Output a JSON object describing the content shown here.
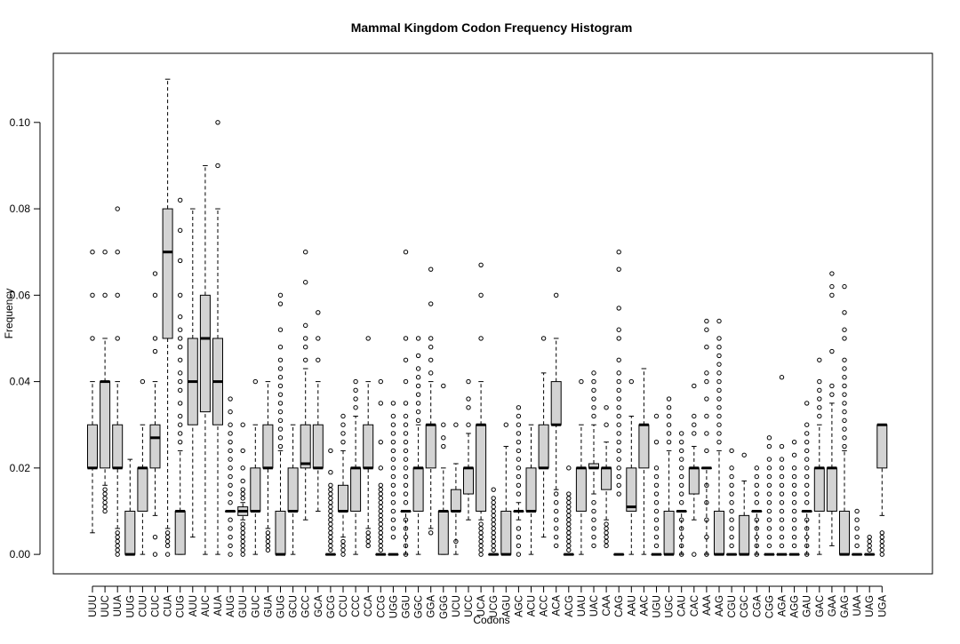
{
  "chart_data": {
    "type": "box",
    "title": "Mammal  Kingdom Codon Frequency Histogram",
    "xlabel": "Codons",
    "ylabel": "Frequency",
    "ylim": [
      -0.0045,
      0.116
    ],
    "yticks": [
      0.0,
      0.02,
      0.04,
      0.06,
      0.08,
      0.1
    ],
    "ytick_labels": [
      "0.00",
      "0.02",
      "0.04",
      "0.06",
      "0.08",
      "0.10"
    ],
    "categories": [
      "UUU",
      "UUC",
      "UUA",
      "UUG",
      "CUU",
      "CUC",
      "CUA",
      "CUG",
      "AUU",
      "AUC",
      "AUA",
      "AUG",
      "GUU",
      "GUC",
      "GUA",
      "GUG",
      "GCU",
      "GCC",
      "GCA",
      "GCG",
      "CCU",
      "CCC",
      "CCA",
      "CCG",
      "UGG",
      "GGU",
      "GGC",
      "GGA",
      "GGG",
      "UCU",
      "UCC",
      "UCA",
      "UCG",
      "AGU",
      "AGC",
      "ACU",
      "ACC",
      "ACA",
      "ACG",
      "UAU",
      "UAC",
      "CAA",
      "CAG",
      "AAU",
      "AAC",
      "UGU",
      "UGC",
      "CAU",
      "CAC",
      "AAA",
      "AAG",
      "CGU",
      "CGC",
      "CGA",
      "CGG",
      "AGA",
      "AGG",
      "GAU",
      "GAC",
      "GAA",
      "GAG",
      "UAA",
      "UAG",
      "UGA"
    ],
    "boxes": [
      {
        "min": 0.005,
        "q1": 0.02,
        "median": 0.02,
        "q3": 0.03,
        "max": 0.04,
        "outliers": [
          0.05,
          0.06,
          0.07
        ]
      },
      {
        "min": 0.016,
        "q1": 0.02,
        "median": 0.04,
        "q3": 0.04,
        "max": 0.05,
        "outliers": [
          0.015,
          0.014,
          0.013,
          0.012,
          0.011,
          0.01,
          0.06,
          0.07
        ]
      },
      {
        "min": 0.006,
        "q1": 0.02,
        "median": 0.02,
        "q3": 0.03,
        "max": 0.04,
        "outliers": [
          0.005,
          0.004,
          0.003,
          0.002,
          0.001,
          0.0,
          0.05,
          0.06,
          0.07,
          0.08
        ]
      },
      {
        "min": 0.0,
        "q1": 0.0,
        "median": 0.0,
        "q3": 0.01,
        "max": 0.022,
        "outliers": []
      },
      {
        "min": 0.0,
        "q1": 0.01,
        "median": 0.02,
        "q3": 0.02,
        "max": 0.03,
        "outliers": [
          0.04
        ]
      },
      {
        "min": 0.009,
        "q1": 0.02,
        "median": 0.027,
        "q3": 0.03,
        "max": 0.04,
        "outliers": [
          0.004,
          0.0,
          0.047,
          0.05,
          0.06,
          0.065
        ]
      },
      {
        "min": 0.006,
        "q1": 0.05,
        "median": 0.07,
        "q3": 0.08,
        "max": 0.11,
        "outliers": [
          0.005,
          0.004,
          0.003,
          0.002,
          0.0
        ]
      },
      {
        "min": 0.0,
        "q1": 0.0,
        "median": 0.01,
        "q3": 0.01,
        "max": 0.024,
        "outliers": [
          0.026,
          0.028,
          0.03,
          0.032,
          0.035,
          0.038,
          0.04,
          0.042,
          0.045,
          0.048,
          0.05,
          0.052,
          0.055,
          0.06,
          0.068,
          0.075,
          0.082
        ]
      },
      {
        "min": 0.004,
        "q1": 0.03,
        "median": 0.04,
        "q3": 0.05,
        "max": 0.08,
        "outliers": []
      },
      {
        "min": 0.0,
        "q1": 0.033,
        "median": 0.05,
        "q3": 0.06,
        "max": 0.09,
        "outliers": []
      },
      {
        "min": 0.0,
        "q1": 0.03,
        "median": 0.04,
        "q3": 0.05,
        "max": 0.08,
        "outliers": [
          0.09,
          0.1
        ]
      },
      {
        "min": 0.01,
        "q1": 0.01,
        "median": 0.01,
        "q3": 0.01,
        "max": 0.01,
        "outliers": [
          0.0,
          0.002,
          0.004,
          0.006,
          0.008,
          0.012,
          0.014,
          0.016,
          0.018,
          0.02,
          0.022,
          0.024,
          0.026,
          0.028,
          0.03,
          0.033,
          0.036
        ]
      },
      {
        "min": 0.008,
        "q1": 0.009,
        "median": 0.01,
        "q3": 0.011,
        "max": 0.012,
        "outliers": [
          0.007,
          0.006,
          0.005,
          0.004,
          0.003,
          0.002,
          0.001,
          0.0,
          0.013,
          0.014,
          0.015,
          0.017,
          0.02,
          0.024,
          0.03
        ]
      },
      {
        "min": 0.0,
        "q1": 0.01,
        "median": 0.01,
        "q3": 0.02,
        "max": 0.03,
        "outliers": [
          0.04
        ]
      },
      {
        "min": 0.006,
        "q1": 0.02,
        "median": 0.02,
        "q3": 0.03,
        "max": 0.04,
        "outliers": [
          0.005,
          0.004,
          0.003,
          0.002,
          0.001
        ]
      },
      {
        "min": 0.0,
        "q1": 0.0,
        "median": 0.0,
        "q3": 0.01,
        "max": 0.024,
        "outliers": [
          0.025,
          0.027,
          0.029,
          0.031,
          0.033,
          0.035,
          0.037,
          0.039,
          0.041,
          0.043,
          0.045,
          0.048,
          0.052,
          0.058,
          0.06
        ]
      },
      {
        "min": 0.0,
        "q1": 0.01,
        "median": 0.01,
        "q3": 0.02,
        "max": 0.03,
        "outliers": []
      },
      {
        "min": 0.008,
        "q1": 0.02,
        "median": 0.021,
        "q3": 0.03,
        "max": 0.043,
        "outliers": [
          0.045,
          0.048,
          0.05,
          0.053,
          0.063,
          0.07
        ]
      },
      {
        "min": 0.01,
        "q1": 0.02,
        "median": 0.02,
        "q3": 0.03,
        "max": 0.04,
        "outliers": [
          0.045,
          0.05,
          0.056
        ]
      },
      {
        "min": 0.0,
        "q1": 0.0,
        "median": 0.0,
        "q3": 0.0,
        "max": 0.0,
        "outliers": [
          0.001,
          0.002,
          0.003,
          0.004,
          0.005,
          0.006,
          0.007,
          0.008,
          0.009,
          0.01,
          0.011,
          0.012,
          0.013,
          0.014,
          0.015,
          0.016,
          0.019,
          0.024
        ]
      },
      {
        "min": 0.004,
        "q1": 0.01,
        "median": 0.01,
        "q3": 0.016,
        "max": 0.024,
        "outliers": [
          0.003,
          0.002,
          0.001,
          0.0,
          0.026,
          0.028,
          0.03,
          0.032
        ]
      },
      {
        "min": 0.0,
        "q1": 0.01,
        "median": 0.02,
        "q3": 0.02,
        "max": 0.032,
        "outliers": [
          0.034,
          0.036,
          0.038,
          0.04
        ]
      },
      {
        "min": 0.006,
        "q1": 0.02,
        "median": 0.02,
        "q3": 0.03,
        "max": 0.04,
        "outliers": [
          0.005,
          0.004,
          0.003,
          0.002,
          0.05
        ]
      },
      {
        "min": 0.0,
        "q1": 0.0,
        "median": 0.0,
        "q3": 0.0,
        "max": 0.0,
        "outliers": [
          0.001,
          0.002,
          0.003,
          0.004,
          0.005,
          0.006,
          0.007,
          0.008,
          0.009,
          0.01,
          0.011,
          0.012,
          0.013,
          0.014,
          0.015,
          0.016,
          0.02,
          0.026,
          0.035,
          0.04
        ]
      },
      {
        "min": 0.0,
        "q1": 0.0,
        "median": 0.0,
        "q3": 0.0,
        "max": 0.0,
        "outliers": [
          0.004,
          0.006,
          0.008,
          0.01,
          0.012,
          0.014,
          0.016,
          0.018,
          0.02,
          0.022,
          0.024,
          0.026,
          0.028,
          0.03,
          0.032,
          0.035
        ]
      },
      {
        "min": 0.0,
        "q1": 0.01,
        "median": 0.01,
        "q3": 0.01,
        "max": 0.01,
        "outliers": [
          0.0,
          0.002,
          0.004,
          0.006,
          0.008,
          0.012,
          0.014,
          0.016,
          0.018,
          0.02,
          0.022,
          0.024,
          0.026,
          0.028,
          0.03,
          0.032,
          0.035,
          0.04,
          0.045,
          0.05,
          0.07
        ]
      },
      {
        "min": 0.0,
        "q1": 0.01,
        "median": 0.02,
        "q3": 0.02,
        "max": 0.03,
        "outliers": [
          0.031,
          0.033,
          0.035,
          0.037,
          0.039,
          0.041,
          0.043,
          0.046,
          0.05
        ]
      },
      {
        "min": 0.006,
        "q1": 0.02,
        "median": 0.03,
        "q3": 0.03,
        "max": 0.04,
        "outliers": [
          0.005,
          0.042,
          0.045,
          0.048,
          0.05,
          0.058,
          0.066
        ]
      },
      {
        "min": 0.0,
        "q1": 0.0,
        "median": 0.01,
        "q3": 0.01,
        "max": 0.02,
        "outliers": [
          0.025,
          0.027,
          0.03,
          0.039
        ]
      },
      {
        "min": 0.0,
        "q1": 0.01,
        "median": 0.01,
        "q3": 0.015,
        "max": 0.021,
        "outliers": [
          0.003,
          0.03
        ]
      },
      {
        "min": 0.008,
        "q1": 0.014,
        "median": 0.02,
        "q3": 0.02,
        "max": 0.028,
        "outliers": [
          0.03,
          0.034,
          0.036,
          0.04
        ]
      },
      {
        "min": 0.008,
        "q1": 0.01,
        "median": 0.03,
        "q3": 0.03,
        "max": 0.04,
        "outliers": [
          0.007,
          0.006,
          0.005,
          0.004,
          0.003,
          0.002,
          0.001,
          0.0,
          0.05,
          0.06,
          0.067
        ]
      },
      {
        "min": 0.0,
        "q1": 0.0,
        "median": 0.0,
        "q3": 0.0,
        "max": 0.0,
        "outliers": [
          0.001,
          0.002,
          0.003,
          0.004,
          0.005,
          0.006,
          0.007,
          0.008,
          0.009,
          0.01,
          0.011,
          0.012,
          0.013,
          0.015
        ]
      },
      {
        "min": 0.0,
        "q1": 0.0,
        "median": 0.0,
        "q3": 0.01,
        "max": 0.025,
        "outliers": [
          0.03
        ]
      },
      {
        "min": 0.008,
        "q1": 0.01,
        "median": 0.01,
        "q3": 0.01,
        "max": 0.012,
        "outliers": [
          0.0,
          0.002,
          0.004,
          0.006,
          0.014,
          0.016,
          0.018,
          0.02,
          0.022,
          0.024,
          0.026,
          0.028,
          0.03,
          0.032,
          0.034
        ]
      },
      {
        "min": 0.0,
        "q1": 0.01,
        "median": 0.01,
        "q3": 0.02,
        "max": 0.03,
        "outliers": []
      },
      {
        "min": 0.004,
        "q1": 0.02,
        "median": 0.02,
        "q3": 0.03,
        "max": 0.042,
        "outliers": [
          0.05
        ]
      },
      {
        "min": 0.015,
        "q1": 0.03,
        "median": 0.03,
        "q3": 0.04,
        "max": 0.05,
        "outliers": [
          0.014,
          0.012,
          0.01,
          0.008,
          0.006,
          0.004,
          0.002,
          0.06
        ]
      },
      {
        "min": 0.0,
        "q1": 0.0,
        "median": 0.0,
        "q3": 0.0,
        "max": 0.0,
        "outliers": [
          0.001,
          0.002,
          0.003,
          0.004,
          0.005,
          0.006,
          0.007,
          0.008,
          0.009,
          0.01,
          0.011,
          0.012,
          0.013,
          0.014,
          0.02
        ]
      },
      {
        "min": 0.0,
        "q1": 0.01,
        "median": 0.02,
        "q3": 0.02,
        "max": 0.03,
        "outliers": [
          0.04
        ]
      },
      {
        "min": 0.014,
        "q1": 0.02,
        "median": 0.02,
        "q3": 0.021,
        "max": 0.03,
        "outliers": [
          0.012,
          0.01,
          0.008,
          0.006,
          0.004,
          0.002,
          0.032,
          0.034,
          0.036,
          0.038,
          0.04,
          0.042
        ]
      },
      {
        "min": 0.008,
        "q1": 0.015,
        "median": 0.02,
        "q3": 0.02,
        "max": 0.026,
        "outliers": [
          0.007,
          0.006,
          0.005,
          0.004,
          0.003,
          0.002,
          0.03,
          0.034
        ]
      },
      {
        "min": 0.0,
        "q1": 0.0,
        "median": 0.0,
        "q3": 0.0,
        "max": 0.0,
        "outliers": [
          0.014,
          0.016,
          0.018,
          0.02,
          0.022,
          0.024,
          0.026,
          0.028,
          0.03,
          0.032,
          0.034,
          0.036,
          0.038,
          0.04,
          0.042,
          0.045,
          0.05,
          0.052,
          0.057,
          0.066,
          0.07
        ]
      },
      {
        "min": 0.0,
        "q1": 0.01,
        "median": 0.011,
        "q3": 0.02,
        "max": 0.032,
        "outliers": [
          0.04
        ]
      },
      {
        "min": 0.0,
        "q1": 0.02,
        "median": 0.03,
        "q3": 0.03,
        "max": 0.043,
        "outliers": []
      },
      {
        "min": 0.0,
        "q1": 0.0,
        "median": 0.0,
        "q3": 0.0,
        "max": 0.0,
        "outliers": [
          0.002,
          0.004,
          0.006,
          0.008,
          0.01,
          0.012,
          0.014,
          0.016,
          0.018,
          0.02,
          0.026,
          0.032
        ]
      },
      {
        "min": 0.0,
        "q1": 0.0,
        "median": 0.0,
        "q3": 0.01,
        "max": 0.024,
        "outliers": [
          0.026,
          0.028,
          0.03,
          0.032,
          0.034,
          0.036
        ]
      },
      {
        "min": 0.0,
        "q1": 0.01,
        "median": 0.01,
        "q3": 0.01,
        "max": 0.01,
        "outliers": [
          0.0,
          0.002,
          0.004,
          0.006,
          0.008,
          0.012,
          0.014,
          0.016,
          0.018,
          0.02,
          0.022,
          0.024,
          0.026,
          0.028
        ]
      },
      {
        "min": 0.008,
        "q1": 0.014,
        "median": 0.02,
        "q3": 0.02,
        "max": 0.025,
        "outliers": [
          0.0,
          0.028,
          0.03,
          0.032,
          0.039
        ]
      },
      {
        "min": 0.0,
        "q1": 0.02,
        "median": 0.02,
        "q3": 0.02,
        "max": 0.02,
        "outliers": [
          0.0,
          0.004,
          0.008,
          0.012,
          0.016,
          0.024,
          0.028,
          0.032,
          0.036,
          0.04,
          0.042,
          0.048,
          0.052,
          0.054
        ]
      },
      {
        "min": 0.0,
        "q1": 0.0,
        "median": 0.0,
        "q3": 0.01,
        "max": 0.024,
        "outliers": [
          0.026,
          0.028,
          0.03,
          0.032,
          0.034,
          0.036,
          0.038,
          0.04,
          0.042,
          0.044,
          0.046,
          0.048,
          0.05,
          0.054
        ]
      },
      {
        "min": 0.0,
        "q1": 0.0,
        "median": 0.0,
        "q3": 0.0,
        "max": 0.0,
        "outliers": [
          0.002,
          0.004,
          0.006,
          0.008,
          0.01,
          0.012,
          0.014,
          0.016,
          0.018,
          0.02,
          0.024
        ]
      },
      {
        "min": 0.0,
        "q1": 0.0,
        "median": 0.0,
        "q3": 0.009,
        "max": 0.017,
        "outliers": [
          0.023
        ]
      },
      {
        "min": 0.0,
        "q1": 0.01,
        "median": 0.01,
        "q3": 0.01,
        "max": 0.01,
        "outliers": [
          0.0,
          0.002,
          0.004,
          0.006,
          0.008,
          0.012,
          0.014,
          0.016,
          0.018,
          0.02
        ]
      },
      {
        "min": 0.0,
        "q1": 0.0,
        "median": 0.0,
        "q3": 0.0,
        "max": 0.0,
        "outliers": [
          0.002,
          0.004,
          0.006,
          0.008,
          0.01,
          0.012,
          0.014,
          0.016,
          0.018,
          0.02,
          0.022,
          0.025,
          0.027
        ]
      },
      {
        "min": 0.0,
        "q1": 0.0,
        "median": 0.0,
        "q3": 0.0,
        "max": 0.0,
        "outliers": [
          0.002,
          0.004,
          0.006,
          0.008,
          0.01,
          0.012,
          0.014,
          0.016,
          0.018,
          0.02,
          0.022,
          0.025,
          0.041
        ]
      },
      {
        "min": 0.0,
        "q1": 0.0,
        "median": 0.0,
        "q3": 0.0,
        "max": 0.0,
        "outliers": [
          0.002,
          0.004,
          0.006,
          0.008,
          0.01,
          0.012,
          0.014,
          0.016,
          0.018,
          0.02,
          0.023,
          0.026
        ]
      },
      {
        "min": 0.0,
        "q1": 0.01,
        "median": 0.01,
        "q3": 0.01,
        "max": 0.01,
        "outliers": [
          0.0,
          0.002,
          0.004,
          0.006,
          0.008,
          0.012,
          0.014,
          0.016,
          0.018,
          0.02,
          0.022,
          0.024,
          0.026,
          0.028,
          0.03,
          0.035
        ]
      },
      {
        "min": 0.0,
        "q1": 0.01,
        "median": 0.02,
        "q3": 0.02,
        "max": 0.03,
        "outliers": [
          0.032,
          0.034,
          0.036,
          0.038,
          0.04,
          0.045
        ]
      },
      {
        "min": 0.002,
        "q1": 0.01,
        "median": 0.02,
        "q3": 0.02,
        "max": 0.035,
        "outliers": [
          0.037,
          0.039,
          0.047,
          0.06,
          0.062,
          0.065
        ]
      },
      {
        "min": 0.0,
        "q1": 0.0,
        "median": 0.0,
        "q3": 0.01,
        "max": 0.024,
        "outliers": [
          0.025,
          0.027,
          0.029,
          0.031,
          0.033,
          0.035,
          0.037,
          0.039,
          0.041,
          0.043,
          0.045,
          0.05,
          0.052,
          0.056,
          0.062
        ]
      },
      {
        "min": 0.0,
        "q1": 0.0,
        "median": 0.0,
        "q3": 0.0,
        "max": 0.0,
        "outliers": [
          0.002,
          0.004,
          0.006,
          0.008,
          0.01
        ]
      },
      {
        "min": 0.0,
        "q1": 0.0,
        "median": 0.0,
        "q3": 0.0,
        "max": 0.0,
        "outliers": [
          0.001,
          0.002,
          0.003,
          0.004
        ]
      },
      {
        "min": 0.009,
        "q1": 0.02,
        "median": 0.03,
        "q3": 0.03,
        "max": 0.03,
        "outliers": [
          0.0,
          0.001,
          0.002,
          0.003,
          0.004,
          0.005
        ]
      }
    ]
  }
}
